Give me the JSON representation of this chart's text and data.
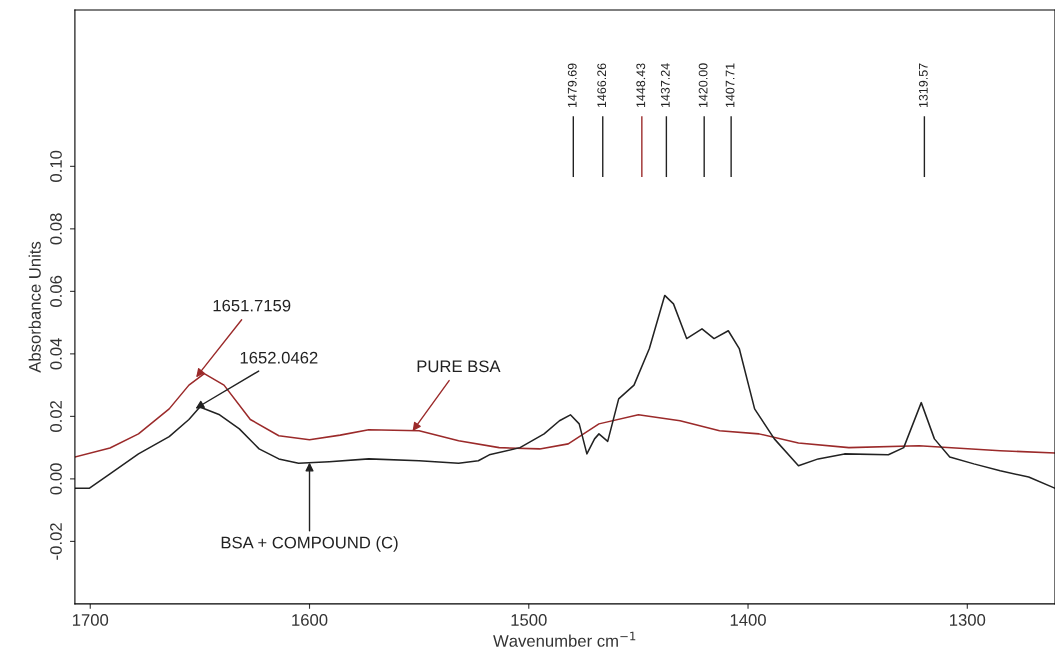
{
  "chart_data": {
    "type": "line",
    "xlabel": "Wavenumber cm$^{−1}$",
    "ylabel": "Absorbance Units",
    "xlim": [
      1707,
      1260
    ],
    "ylim": [
      -0.04,
      0.15
    ],
    "xticks": [
      1700,
      1600,
      1500,
      1400,
      1300
    ],
    "yticks": [
      {
        "value": -0.02,
        "label": "-0.02"
      },
      {
        "value": 0,
        "label": "0.00"
      },
      {
        "value": 0.02,
        "label": "0.02"
      },
      {
        "value": 0.04,
        "label": "0.04"
      },
      {
        "value": 0.06,
        "label": "0.06"
      },
      {
        "value": 0.08,
        "label": "0.08"
      },
      {
        "value": 0.1,
        "label": "0.10"
      }
    ],
    "grid": false,
    "legend": false,
    "marker": "none",
    "line_style": "solid",
    "series": [
      {
        "color": "#9b2a2a",
        "x": [
          1707,
          1691,
          1678,
          1664,
          1655,
          1648,
          1639,
          1627,
          1614,
          1600,
          1586,
          1573,
          1550,
          1532,
          1513.5,
          1495,
          1482,
          1468,
          1450,
          1431,
          1413,
          1395,
          1377,
          1354,
          1322,
          1285,
          1260
        ],
        "values": [
          0.007,
          0.0099,
          0.0144,
          0.0224,
          0.03,
          0.0337,
          0.03,
          0.019,
          0.0138,
          0.0125,
          0.014,
          0.0157,
          0.0154,
          0.0122,
          0.01,
          0.0096,
          0.0112,
          0.0176,
          0.0205,
          0.0186,
          0.0154,
          0.0144,
          0.0115,
          0.01,
          0.0106,
          0.009,
          0.0083
        ]
      },
      {
        "color": "#222222",
        "x": [
          1707,
          1700.5,
          1691,
          1678,
          1664,
          1655,
          1650,
          1641,
          1632,
          1623,
          1614,
          1605,
          1591,
          1573,
          1550,
          1532,
          1523,
          1518,
          1504,
          1493,
          1486,
          1481,
          1477,
          1473.5,
          1470,
          1468,
          1464,
          1459,
          1452,
          1445,
          1438,
          1434,
          1428,
          1421,
          1415.5,
          1409,
          1404,
          1397,
          1388,
          1377,
          1368,
          1356,
          1336,
          1329,
          1321,
          1315,
          1308,
          1297,
          1285,
          1272,
          1260
        ],
        "values": [
          -0.003,
          -0.003,
          0.0016,
          0.008,
          0.0135,
          0.019,
          0.023,
          0.0205,
          0.016,
          0.0096,
          0.0064,
          0.005,
          0.0055,
          0.0064,
          0.0058,
          0.005,
          0.0058,
          0.0077,
          0.01,
          0.0144,
          0.0186,
          0.0205,
          0.0176,
          0.008,
          0.0128,
          0.0144,
          0.012,
          0.0256,
          0.03,
          0.0417,
          0.0587,
          0.056,
          0.0449,
          0.048,
          0.0449,
          0.0474,
          0.0417,
          0.0224,
          0.0128,
          0.0042,
          0.0064,
          0.008,
          0.0077,
          0.01,
          0.0244,
          0.0128,
          0.007,
          0.0048,
          0.0026,
          0.0006,
          -0.003
        ]
      }
    ],
    "ref_lines": [
      {
        "axis": "x",
        "value": 1479.69,
        "label": "1479.69",
        "color": "#222222"
      },
      {
        "axis": "x",
        "value": 1466.26,
        "label": "1466.26",
        "color": "#222222"
      },
      {
        "axis": "x",
        "value": 1448.43,
        "label": "1448.43",
        "color": "#9b2a2a"
      },
      {
        "axis": "x",
        "value": 1437.24,
        "label": "1437.24",
        "color": "#222222"
      },
      {
        "axis": "x",
        "value": 1420.0,
        "label": "1420.00",
        "color": "#222222"
      },
      {
        "axis": "x",
        "value": 1407.71,
        "label": "1407.71",
        "color": "#222222"
      },
      {
        "axis": "x",
        "value": 1319.57,
        "label": "1319.57",
        "color": "#222222"
      }
    ],
    "annotations": [
      {
        "text": "1651.7159",
        "x": 1651.7,
        "y": 0.0325
      },
      {
        "text": "1652.0462",
        "x": 1652.0,
        "y": 0.0225
      },
      {
        "text": "PURE BSA",
        "x": 1553,
        "y": 0.0153
      },
      {
        "text": "BSA + COMPOUND (C)",
        "x": 1600,
        "y": 0.0052
      }
    ]
  }
}
